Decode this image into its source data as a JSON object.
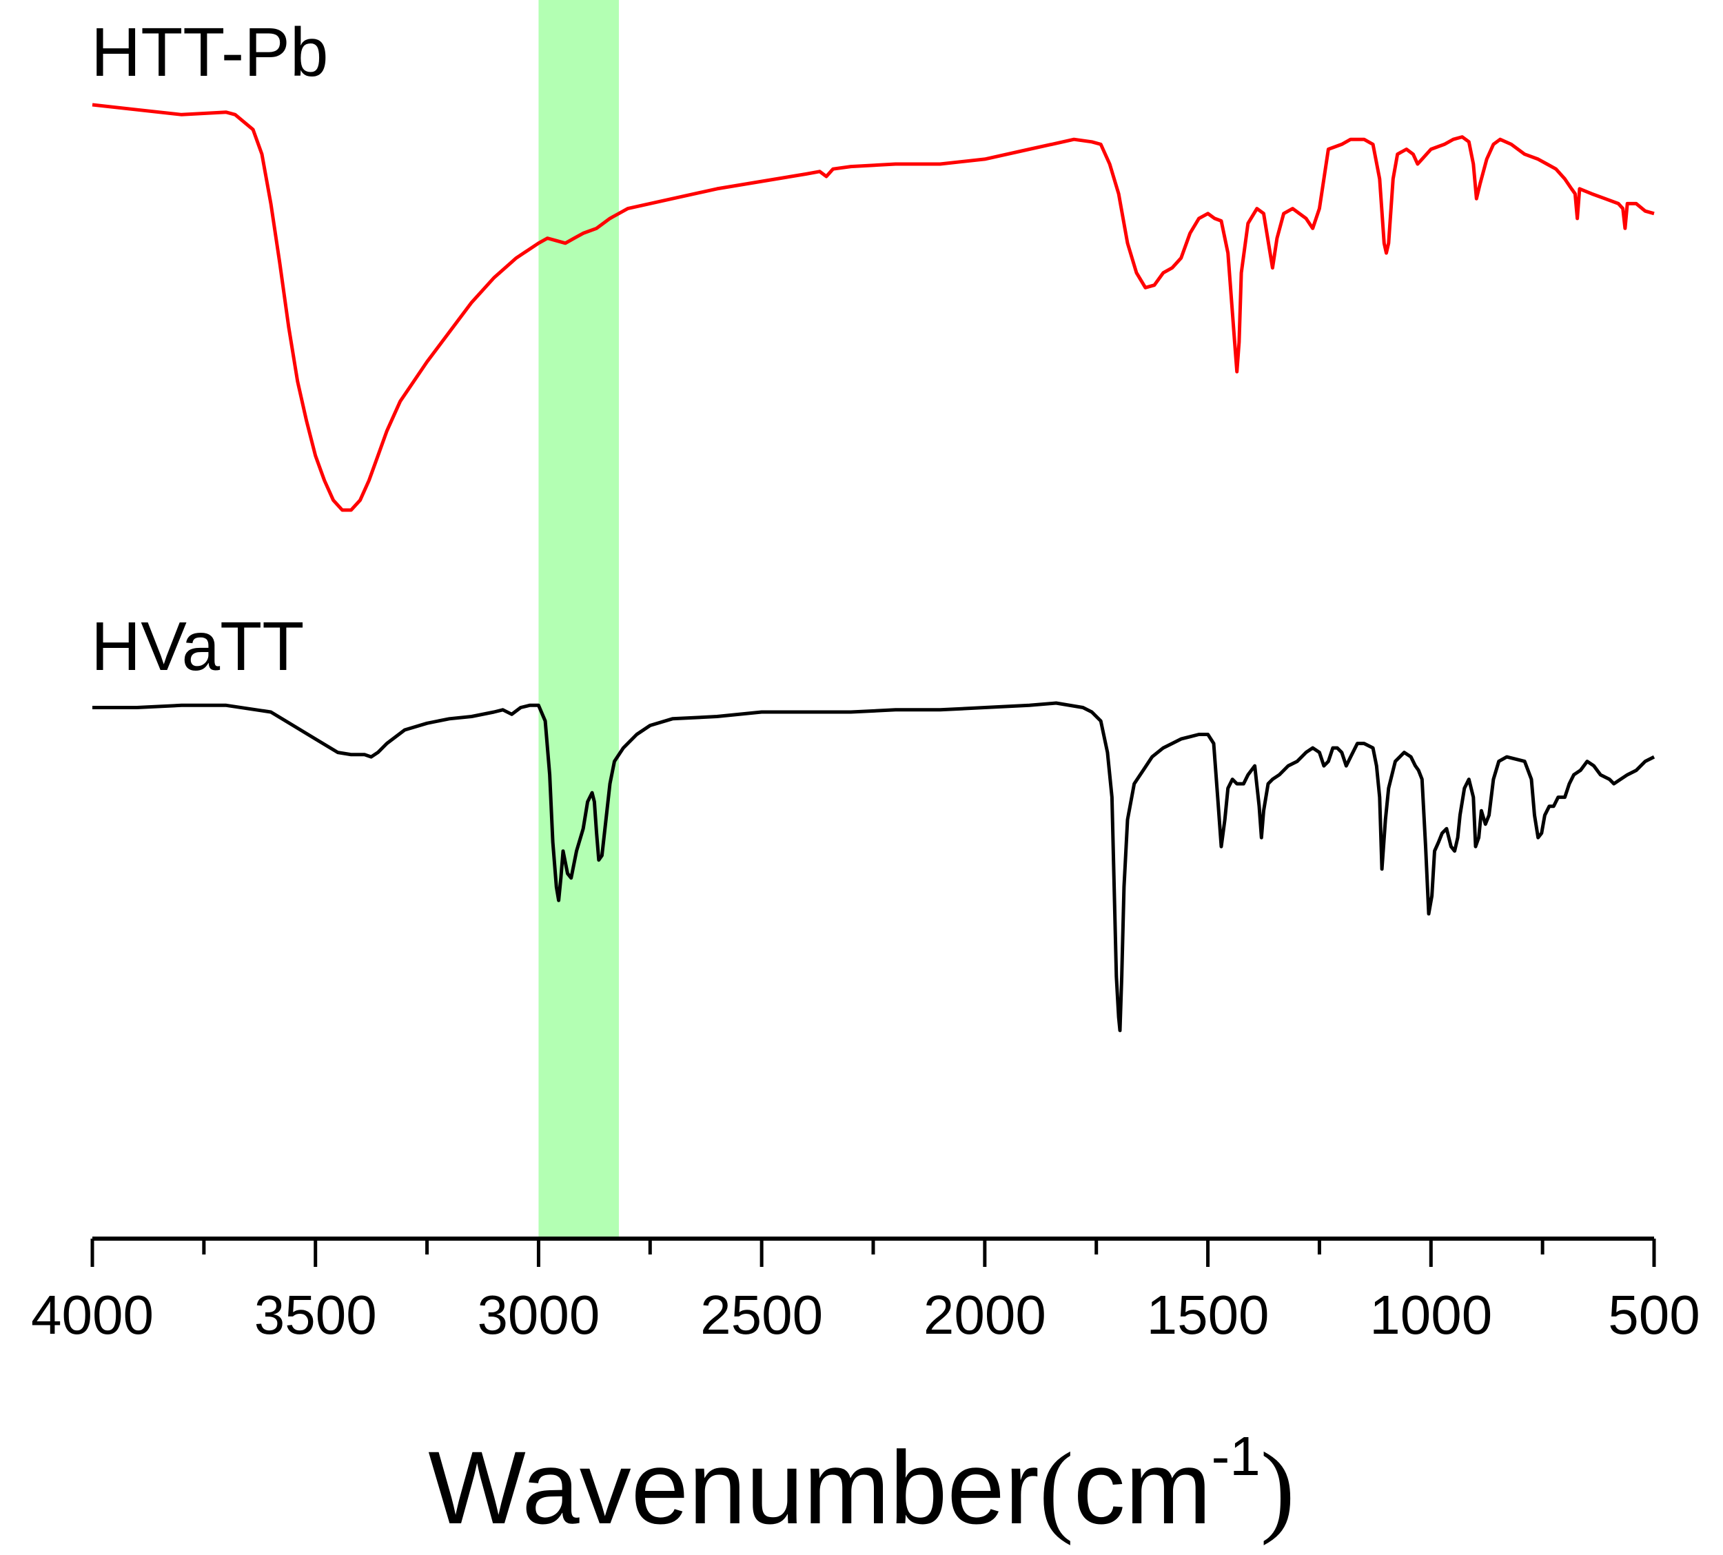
{
  "chart_data": {
    "type": "line",
    "title": "",
    "xlabel": {
      "main": "Wavenumber",
      "open": "(",
      "unit": "cm",
      "exponent": "-1",
      "close": ")"
    },
    "ylabel": "",
    "xlim": [
      4000,
      500
    ],
    "x_reversed": true,
    "xticks": [
      "4000",
      "3500",
      "3000",
      "2500",
      "2000",
      "1500",
      "1000",
      "500"
    ],
    "highlight_band": {
      "from": 3000,
      "to": 2820,
      "color": "#b3ffb3"
    },
    "series": [
      {
        "name": "HTT-Pb",
        "color": "#ff0000",
        "offset": 0,
        "points": [
          [
            4000,
            100
          ],
          [
            3900,
            99
          ],
          [
            3800,
            98
          ],
          [
            3700,
            98.5
          ],
          [
            3680,
            98
          ],
          [
            3640,
            95
          ],
          [
            3620,
            90
          ],
          [
            3600,
            80
          ],
          [
            3580,
            68
          ],
          [
            3560,
            55
          ],
          [
            3540,
            44
          ],
          [
            3520,
            36
          ],
          [
            3500,
            29
          ],
          [
            3480,
            24
          ],
          [
            3460,
            20
          ],
          [
            3440,
            18
          ],
          [
            3420,
            18
          ],
          [
            3400,
            20
          ],
          [
            3380,
            24
          ],
          [
            3360,
            29
          ],
          [
            3340,
            34
          ],
          [
            3310,
            40
          ],
          [
            3280,
            44
          ],
          [
            3250,
            48
          ],
          [
            3200,
            54
          ],
          [
            3150,
            60
          ],
          [
            3100,
            65
          ],
          [
            3050,
            69
          ],
          [
            3000,
            72
          ],
          [
            2980,
            73
          ],
          [
            2960,
            72.5
          ],
          [
            2940,
            72
          ],
          [
            2920,
            73
          ],
          [
            2900,
            74
          ],
          [
            2870,
            75
          ],
          [
            2840,
            77
          ],
          [
            2800,
            79
          ],
          [
            2700,
            81
          ],
          [
            2600,
            83
          ],
          [
            2500,
            84.5
          ],
          [
            2400,
            86
          ],
          [
            2370,
            86.5
          ],
          [
            2355,
            85.5
          ],
          [
            2340,
            87
          ],
          [
            2300,
            87.5
          ],
          [
            2200,
            88
          ],
          [
            2100,
            88
          ],
          [
            2000,
            89
          ],
          [
            1900,
            91
          ],
          [
            1850,
            92
          ],
          [
            1800,
            93
          ],
          [
            1760,
            92.5
          ],
          [
            1740,
            92
          ],
          [
            1720,
            88
          ],
          [
            1700,
            82
          ],
          [
            1680,
            72
          ],
          [
            1660,
            66
          ],
          [
            1640,
            63
          ],
          [
            1620,
            63.5
          ],
          [
            1600,
            66
          ],
          [
            1580,
            67
          ],
          [
            1560,
            69
          ],
          [
            1540,
            74
          ],
          [
            1520,
            77
          ],
          [
            1500,
            78
          ],
          [
            1485,
            77
          ],
          [
            1470,
            76.5
          ],
          [
            1455,
            70
          ],
          [
            1440,
            52
          ],
          [
            1435,
            46
          ],
          [
            1430,
            52
          ],
          [
            1425,
            66
          ],
          [
            1410,
            76
          ],
          [
            1390,
            79
          ],
          [
            1375,
            78
          ],
          [
            1355,
            67
          ],
          [
            1345,
            73
          ],
          [
            1330,
            78
          ],
          [
            1310,
            79
          ],
          [
            1295,
            78
          ],
          [
            1280,
            77
          ],
          [
            1265,
            75
          ],
          [
            1250,
            79
          ],
          [
            1230,
            91
          ],
          [
            1200,
            92
          ],
          [
            1180,
            93
          ],
          [
            1150,
            93
          ],
          [
            1130,
            92
          ],
          [
            1115,
            85
          ],
          [
            1105,
            72
          ],
          [
            1100,
            70
          ],
          [
            1095,
            72
          ],
          [
            1085,
            85
          ],
          [
            1075,
            90
          ],
          [
            1055,
            91
          ],
          [
            1040,
            90
          ],
          [
            1030,
            88
          ],
          [
            1020,
            89
          ],
          [
            1000,
            91
          ],
          [
            970,
            92
          ],
          [
            950,
            93
          ],
          [
            930,
            93.5
          ],
          [
            915,
            92.5
          ],
          [
            905,
            88
          ],
          [
            898,
            81
          ],
          [
            890,
            84
          ],
          [
            875,
            89
          ],
          [
            860,
            92
          ],
          [
            845,
            93
          ],
          [
            820,
            92
          ],
          [
            790,
            90
          ],
          [
            760,
            89
          ],
          [
            740,
            88
          ],
          [
            720,
            87
          ],
          [
            700,
            85
          ],
          [
            685,
            83
          ],
          [
            677,
            82
          ],
          [
            672,
            77
          ],
          [
            667,
            83
          ],
          [
            640,
            82
          ],
          [
            610,
            81
          ],
          [
            580,
            80
          ],
          [
            570,
            79
          ],
          [
            565,
            75
          ],
          [
            560,
            80
          ],
          [
            540,
            80
          ],
          [
            520,
            78.5
          ],
          [
            500,
            78
          ]
        ]
      },
      {
        "name": "HVaTT",
        "color": "#000000",
        "offset": 0,
        "points": [
          [
            4000,
            100
          ],
          [
            3900,
            100
          ],
          [
            3800,
            100.5
          ],
          [
            3700,
            100.5
          ],
          [
            3600,
            99
          ],
          [
            3550,
            96
          ],
          [
            3500,
            93
          ],
          [
            3450,
            90
          ],
          [
            3420,
            89.5
          ],
          [
            3390,
            89.5
          ],
          [
            3375,
            89
          ],
          [
            3360,
            90
          ],
          [
            3340,
            92
          ],
          [
            3300,
            95
          ],
          [
            3250,
            96.5
          ],
          [
            3200,
            97.5
          ],
          [
            3150,
            98
          ],
          [
            3100,
            99
          ],
          [
            3080,
            99.5
          ],
          [
            3060,
            98.5
          ],
          [
            3040,
            100
          ],
          [
            3020,
            100.5
          ],
          [
            3000,
            100.5
          ],
          [
            2985,
            97
          ],
          [
            2975,
            85
          ],
          [
            2968,
            70
          ],
          [
            2960,
            60
          ],
          [
            2955,
            57
          ],
          [
            2950,
            62
          ],
          [
            2945,
            68
          ],
          [
            2935,
            63
          ],
          [
            2927,
            62
          ],
          [
            2915,
            68
          ],
          [
            2900,
            73
          ],
          [
            2890,
            79
          ],
          [
            2880,
            81
          ],
          [
            2875,
            79
          ],
          [
            2870,
            72
          ],
          [
            2865,
            66
          ],
          [
            2858,
            67
          ],
          [
            2850,
            74
          ],
          [
            2840,
            83
          ],
          [
            2830,
            88
          ],
          [
            2810,
            91
          ],
          [
            2780,
            94
          ],
          [
            2750,
            96
          ],
          [
            2700,
            97.5
          ],
          [
            2600,
            98
          ],
          [
            2500,
            99
          ],
          [
            2400,
            99
          ],
          [
            2300,
            99
          ],
          [
            2200,
            99.5
          ],
          [
            2100,
            99.5
          ],
          [
            2000,
            100
          ],
          [
            1900,
            100.5
          ],
          [
            1840,
            101
          ],
          [
            1780,
            100
          ],
          [
            1760,
            99
          ],
          [
            1740,
            97
          ],
          [
            1725,
            90
          ],
          [
            1715,
            80
          ],
          [
            1710,
            60
          ],
          [
            1705,
            40
          ],
          [
            1700,
            31
          ],
          [
            1697,
            28
          ],
          [
            1693,
            40
          ],
          [
            1688,
            60
          ],
          [
            1680,
            75
          ],
          [
            1665,
            83
          ],
          [
            1645,
            86
          ],
          [
            1625,
            89
          ],
          [
            1600,
            91
          ],
          [
            1580,
            92
          ],
          [
            1560,
            93
          ],
          [
            1540,
            93.5
          ],
          [
            1520,
            94
          ],
          [
            1500,
            94
          ],
          [
            1487,
            92
          ],
          [
            1478,
            80
          ],
          [
            1470,
            69
          ],
          [
            1462,
            75
          ],
          [
            1455,
            82
          ],
          [
            1445,
            84
          ],
          [
            1435,
            83
          ],
          [
            1420,
            83
          ],
          [
            1410,
            85
          ],
          [
            1395,
            87
          ],
          [
            1385,
            78
          ],
          [
            1380,
            71
          ],
          [
            1375,
            77
          ],
          [
            1365,
            83
          ],
          [
            1355,
            84
          ],
          [
            1340,
            85
          ],
          [
            1320,
            87
          ],
          [
            1300,
            88
          ],
          [
            1280,
            90
          ],
          [
            1265,
            91
          ],
          [
            1250,
            90
          ],
          [
            1240,
            87
          ],
          [
            1230,
            88
          ],
          [
            1220,
            91
          ],
          [
            1210,
            91
          ],
          [
            1200,
            90
          ],
          [
            1190,
            87
          ],
          [
            1180,
            89
          ],
          [
            1165,
            92
          ],
          [
            1150,
            92
          ],
          [
            1130,
            91
          ],
          [
            1122,
            87
          ],
          [
            1115,
            80
          ],
          [
            1110,
            64
          ],
          [
            1102,
            75
          ],
          [
            1095,
            82
          ],
          [
            1080,
            88
          ],
          [
            1060,
            90
          ],
          [
            1045,
            89
          ],
          [
            1035,
            87
          ],
          [
            1028,
            86
          ],
          [
            1020,
            84
          ],
          [
            1012,
            69
          ],
          [
            1005,
            54
          ],
          [
            998,
            58
          ],
          [
            992,
            68
          ],
          [
            983,
            70
          ],
          [
            975,
            72
          ],
          [
            965,
            73
          ],
          [
            955,
            69
          ],
          [
            947,
            68
          ],
          [
            940,
            71
          ],
          [
            935,
            76
          ],
          [
            925,
            82
          ],
          [
            915,
            84
          ],
          [
            905,
            80
          ],
          [
            900,
            69
          ],
          [
            893,
            71
          ],
          [
            887,
            77
          ],
          [
            878,
            74
          ],
          [
            870,
            76
          ],
          [
            860,
            84
          ],
          [
            848,
            88
          ],
          [
            830,
            89
          ],
          [
            810,
            88.5
          ],
          [
            790,
            88
          ],
          [
            775,
            84
          ],
          [
            768,
            76
          ],
          [
            760,
            71
          ],
          [
            752,
            72
          ],
          [
            745,
            76
          ],
          [
            735,
            78
          ],
          [
            725,
            78
          ],
          [
            715,
            80
          ],
          [
            700,
            80
          ],
          [
            690,
            83
          ],
          [
            680,
            85
          ],
          [
            665,
            86
          ],
          [
            650,
            88
          ],
          [
            635,
            87
          ],
          [
            620,
            85
          ],
          [
            600,
            84
          ],
          [
            590,
            83
          ],
          [
            575,
            84
          ],
          [
            560,
            85
          ],
          [
            540,
            86
          ],
          [
            520,
            88
          ],
          [
            500,
            89
          ]
        ]
      }
    ],
    "annotations": []
  }
}
